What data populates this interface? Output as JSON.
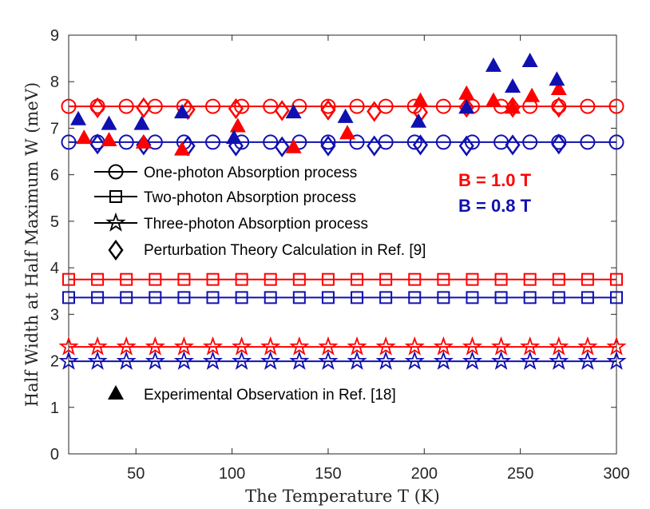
{
  "chart_data": {
    "type": "line",
    "title": "",
    "xlabel": "The Temperature T (K)",
    "ylabel": "Half Width at Half Maximum W (meV)",
    "xlim": [
      15,
      300
    ],
    "ylim": [
      0,
      9
    ],
    "xticks": [
      50,
      100,
      150,
      200,
      250,
      300
    ],
    "yticks": [
      0,
      1,
      2,
      3,
      4,
      5,
      6,
      7,
      8,
      9
    ],
    "grid": false,
    "colors": {
      "b10": "#ff0000",
      "b08": "#1010b0",
      "axis": "#262626"
    },
    "field_labels": [
      {
        "text": "B = 1.0 T",
        "color": "#ff0000"
      },
      {
        "text": "B = 0.8 T",
        "color": "#1010b0"
      }
    ],
    "legend": {
      "placement": "middle-left",
      "items": [
        {
          "label": "One-photon Absorption process",
          "marker": "circle"
        },
        {
          "label": "Two-photon Absorption process",
          "marker": "square"
        },
        {
          "label": "Three-photon Absorption process",
          "marker": "star"
        },
        {
          "label": "Perturbation Theory Calculation in Ref. [9]",
          "marker": "diamond"
        }
      ]
    },
    "legend_extra": {
      "label": "Experimental Observation in Ref. [18]",
      "marker": "triangle"
    },
    "series": [
      {
        "name": "One-photon B=1.0 T",
        "color": "#ff0000",
        "marker": "circle",
        "line": true,
        "x": [
          15,
          30,
          45,
          60,
          75,
          90,
          105,
          120,
          135,
          150,
          165,
          180,
          195,
          210,
          225,
          240,
          255,
          270,
          285,
          300
        ],
        "y": [
          7.47,
          7.47,
          7.47,
          7.47,
          7.47,
          7.47,
          7.47,
          7.47,
          7.47,
          7.47,
          7.47,
          7.47,
          7.47,
          7.47,
          7.47,
          7.47,
          7.47,
          7.47,
          7.47,
          7.47
        ]
      },
      {
        "name": "One-photon B=0.8 T",
        "color": "#1010b0",
        "marker": "circle",
        "line": true,
        "x": [
          15,
          30,
          45,
          60,
          75,
          90,
          105,
          120,
          135,
          150,
          165,
          180,
          195,
          210,
          225,
          240,
          255,
          270,
          285,
          300
        ],
        "y": [
          6.7,
          6.7,
          6.7,
          6.7,
          6.7,
          6.7,
          6.7,
          6.7,
          6.7,
          6.7,
          6.7,
          6.7,
          6.7,
          6.7,
          6.7,
          6.7,
          6.7,
          6.7,
          6.7,
          6.7
        ]
      },
      {
        "name": "Two-photon B=1.0 T",
        "color": "#ff0000",
        "marker": "square",
        "line": true,
        "x": [
          15,
          30,
          45,
          60,
          75,
          90,
          105,
          120,
          135,
          150,
          165,
          180,
          195,
          210,
          225,
          240,
          255,
          270,
          285,
          300
        ],
        "y": [
          3.75,
          3.75,
          3.75,
          3.75,
          3.75,
          3.75,
          3.75,
          3.75,
          3.75,
          3.75,
          3.75,
          3.75,
          3.75,
          3.75,
          3.75,
          3.75,
          3.75,
          3.75,
          3.75,
          3.75
        ]
      },
      {
        "name": "Two-photon B=0.8 T",
        "color": "#1010b0",
        "marker": "square",
        "line": true,
        "x": [
          15,
          30,
          45,
          60,
          75,
          90,
          105,
          120,
          135,
          150,
          165,
          180,
          195,
          210,
          225,
          240,
          255,
          270,
          285,
          300
        ],
        "y": [
          3.36,
          3.36,
          3.36,
          3.36,
          3.36,
          3.36,
          3.36,
          3.36,
          3.36,
          3.36,
          3.36,
          3.36,
          3.36,
          3.36,
          3.36,
          3.36,
          3.36,
          3.36,
          3.36,
          3.36
        ]
      },
      {
        "name": "Three-photon B=1.0 T",
        "color": "#ff0000",
        "marker": "star",
        "line": true,
        "x": [
          15,
          30,
          45,
          60,
          75,
          90,
          105,
          120,
          135,
          150,
          165,
          180,
          195,
          210,
          225,
          240,
          255,
          270,
          285,
          300
        ],
        "y": [
          2.3,
          2.3,
          2.3,
          2.3,
          2.3,
          2.3,
          2.3,
          2.3,
          2.3,
          2.3,
          2.3,
          2.3,
          2.3,
          2.3,
          2.3,
          2.3,
          2.3,
          2.3,
          2.3,
          2.3
        ]
      },
      {
        "name": "Three-photon B=0.8 T",
        "color": "#1010b0",
        "marker": "star",
        "line": true,
        "x": [
          15,
          30,
          45,
          60,
          75,
          90,
          105,
          120,
          135,
          150,
          165,
          180,
          195,
          210,
          225,
          240,
          255,
          270,
          285,
          300
        ],
        "y": [
          1.99,
          1.99,
          1.99,
          1.99,
          1.99,
          1.99,
          1.99,
          1.99,
          1.99,
          1.99,
          1.99,
          1.99,
          1.99,
          1.99,
          1.99,
          1.99,
          1.99,
          1.99,
          1.99,
          1.99
        ]
      },
      {
        "name": "Perturbation theory B=1.0 T",
        "color": "#ff0000",
        "marker": "diamond",
        "line": false,
        "x": [
          30,
          54,
          77,
          102,
          126,
          150,
          174,
          198,
          222,
          246,
          270
        ],
        "y": [
          7.44,
          7.44,
          7.4,
          7.42,
          7.38,
          7.39,
          7.36,
          7.34,
          7.45,
          7.45,
          7.45
        ]
      },
      {
        "name": "Perturbation theory B=0.8 T",
        "color": "#1010b0",
        "marker": "diamond",
        "line": false,
        "x": [
          30,
          54,
          77,
          102,
          126,
          150,
          174,
          198,
          222,
          246,
          270
        ],
        "y": [
          6.66,
          6.64,
          6.62,
          6.62,
          6.6,
          6.62,
          6.62,
          6.64,
          6.62,
          6.64,
          6.66
        ]
      },
      {
        "name": "Experimental B=1.0 T",
        "color": "#ff0000",
        "marker": "triangle",
        "line": false,
        "x": [
          23,
          36,
          54,
          74,
          103,
          132,
          160,
          198,
          222,
          236,
          246,
          256,
          270
        ],
        "y": [
          6.8,
          6.75,
          6.7,
          6.55,
          7.05,
          6.6,
          6.9,
          7.6,
          7.75,
          7.6,
          7.45,
          7.7,
          7.85
        ]
      },
      {
        "name": "Experimental B=0.8 T",
        "color": "#1010b0",
        "marker": "triangle",
        "line": false,
        "x": [
          20,
          36,
          53,
          74,
          101,
          132,
          159,
          197,
          222,
          236,
          246,
          255,
          269
        ],
        "y": [
          7.2,
          7.1,
          7.1,
          7.35,
          6.8,
          7.35,
          7.25,
          7.15,
          7.45,
          8.35,
          7.9,
          8.45,
          8.05
        ]
      }
    ]
  }
}
